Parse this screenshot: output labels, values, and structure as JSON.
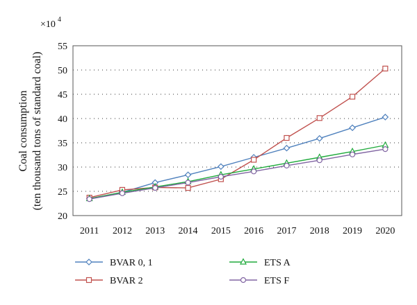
{
  "chart_data": {
    "type": "line",
    "multiplier_label": "×10",
    "multiplier_exponent": "4",
    "ylabel_line1": "Coal consumption",
    "ylabel_line2": "(ten thousand tons of standard coal)",
    "xlabel": "",
    "title": "",
    "x": [
      "2011",
      "2012",
      "2013",
      "2014",
      "2015",
      "2016",
      "2017",
      "2018",
      "2019",
      "2020"
    ],
    "ylim": [
      20,
      55
    ],
    "yticks": [
      20,
      25,
      30,
      35,
      40,
      45,
      50,
      55
    ],
    "grid": "horizontal dotted",
    "legend_position": "bottom",
    "series": [
      {
        "name": "BVAR 0, 1",
        "color": "#4f81bd",
        "marker": "diamond",
        "values": [
          23.5,
          24.8,
          26.8,
          28.4,
          30.1,
          32.0,
          33.9,
          35.9,
          38.1,
          40.3
        ]
      },
      {
        "name": "BVAR 2",
        "color": "#c0504d",
        "marker": "square",
        "values": [
          23.7,
          25.3,
          25.8,
          25.7,
          27.5,
          31.5,
          36.0,
          40.1,
          44.5,
          50.3
        ]
      },
      {
        "name": "ETS A",
        "color": "#1faa3c",
        "marker": "triangle",
        "values": [
          23.5,
          24.8,
          25.9,
          27.0,
          28.4,
          29.6,
          30.8,
          32.0,
          33.2,
          34.5
        ]
      },
      {
        "name": "ETS F",
        "color": "#8064a2",
        "marker": "circle",
        "values": [
          23.4,
          24.6,
          25.7,
          26.8,
          28.0,
          29.1,
          30.3,
          31.4,
          32.6,
          33.7
        ]
      }
    ]
  }
}
